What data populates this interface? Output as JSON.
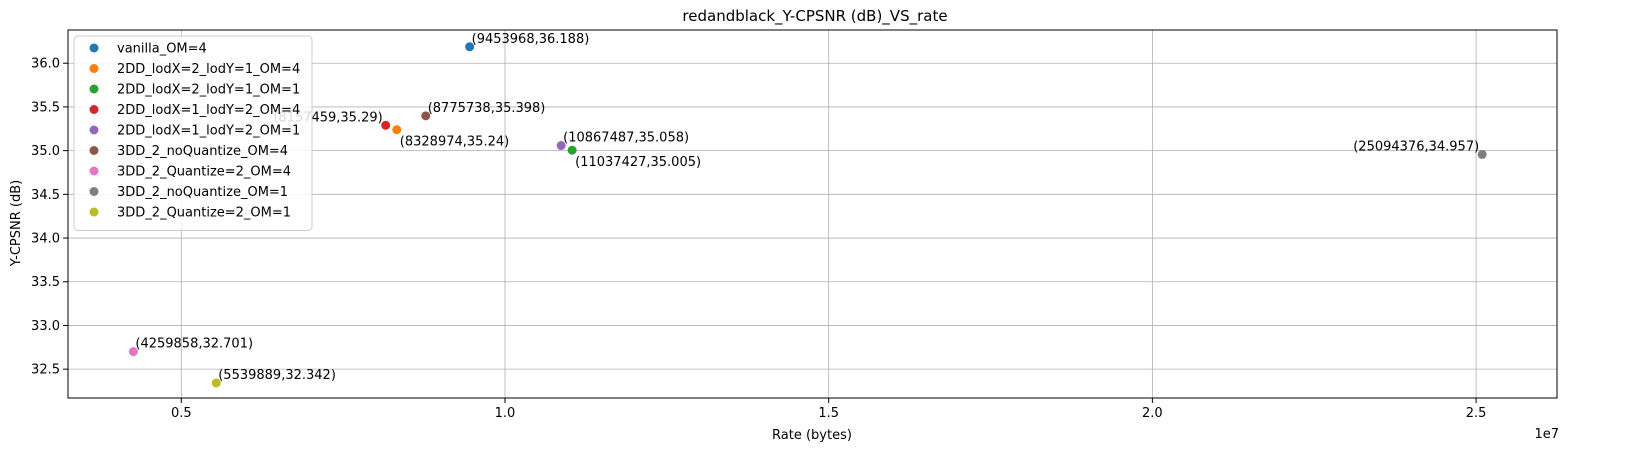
{
  "chart_data": {
    "type": "scatter",
    "title": "redandblack_Y-CPSNR (dB)_VS_rate",
    "xlabel": "Rate (bytes)",
    "ylabel": "Y-CPSNR (dB)",
    "x_offset_text": "1e7",
    "xlim": [
      3250000,
      26250000
    ],
    "ylim": [
      32.17,
      36.38
    ],
    "xticks": [
      5000000,
      10000000,
      15000000,
      20000000,
      25000000
    ],
    "xtick_labels": [
      "0.5",
      "1.0",
      "1.5",
      "2.0",
      "2.5"
    ],
    "yticks": [
      32.5,
      33.0,
      33.5,
      34.0,
      34.5,
      35.0,
      35.5,
      36.0
    ],
    "ytick_labels": [
      "32.5",
      "33.0",
      "33.5",
      "34.0",
      "34.5",
      "35.0",
      "35.5",
      "36.0"
    ],
    "grid": true,
    "legend_position": "top-left",
    "series": [
      {
        "name": "vanilla_OM=4",
        "color": "#1f77b4",
        "x": 9453968,
        "y": 36.188,
        "label": "(9453968,36.188)",
        "label_anchor": "right-above"
      },
      {
        "name": "2DD_lodX=2_lodY=1_OM=4",
        "color": "#ff7f0e",
        "x": 8328974,
        "y": 35.24,
        "label": "(8328974,35.24)",
        "label_anchor": "right-below"
      },
      {
        "name": "2DD_lodX=2_lodY=1_OM=1",
        "color": "#2ca02c",
        "x": 11037427,
        "y": 35.005,
        "label": "(11037427,35.005)",
        "label_anchor": "right-below"
      },
      {
        "name": "2DD_lodX=1_lodY=2_OM=4",
        "color": "#d62728",
        "x": 8157459,
        "y": 35.29,
        "label": "(8157459,35.29)",
        "label_anchor": "left-above"
      },
      {
        "name": "2DD_lodX=1_lodY=2_OM=1",
        "color": "#9467bd",
        "x": 10867487,
        "y": 35.058,
        "label": "(10867487,35.058)",
        "label_anchor": "right-above"
      },
      {
        "name": "3DD_2_noQuantize_OM=4",
        "color": "#8c564b",
        "x": 8775738,
        "y": 35.398,
        "label": "(8775738,35.398)",
        "label_anchor": "right-above"
      },
      {
        "name": "3DD_2_Quantize=2_OM=4",
        "color": "#e377c2",
        "x": 4259858,
        "y": 32.701,
        "label": "(4259858,32.701)",
        "label_anchor": "right-above"
      },
      {
        "name": "3DD_2_noQuantize_OM=1",
        "color": "#7f7f7f",
        "x": 25094376,
        "y": 34.957,
        "label": "(25094376,34.957)",
        "label_anchor": "left-above"
      },
      {
        "name": "3DD_2_Quantize=2_OM=1",
        "color": "#bcbd22",
        "x": 5539889,
        "y": 32.342,
        "label": "(5539889,32.342)",
        "label_anchor": "right-above"
      }
    ]
  }
}
